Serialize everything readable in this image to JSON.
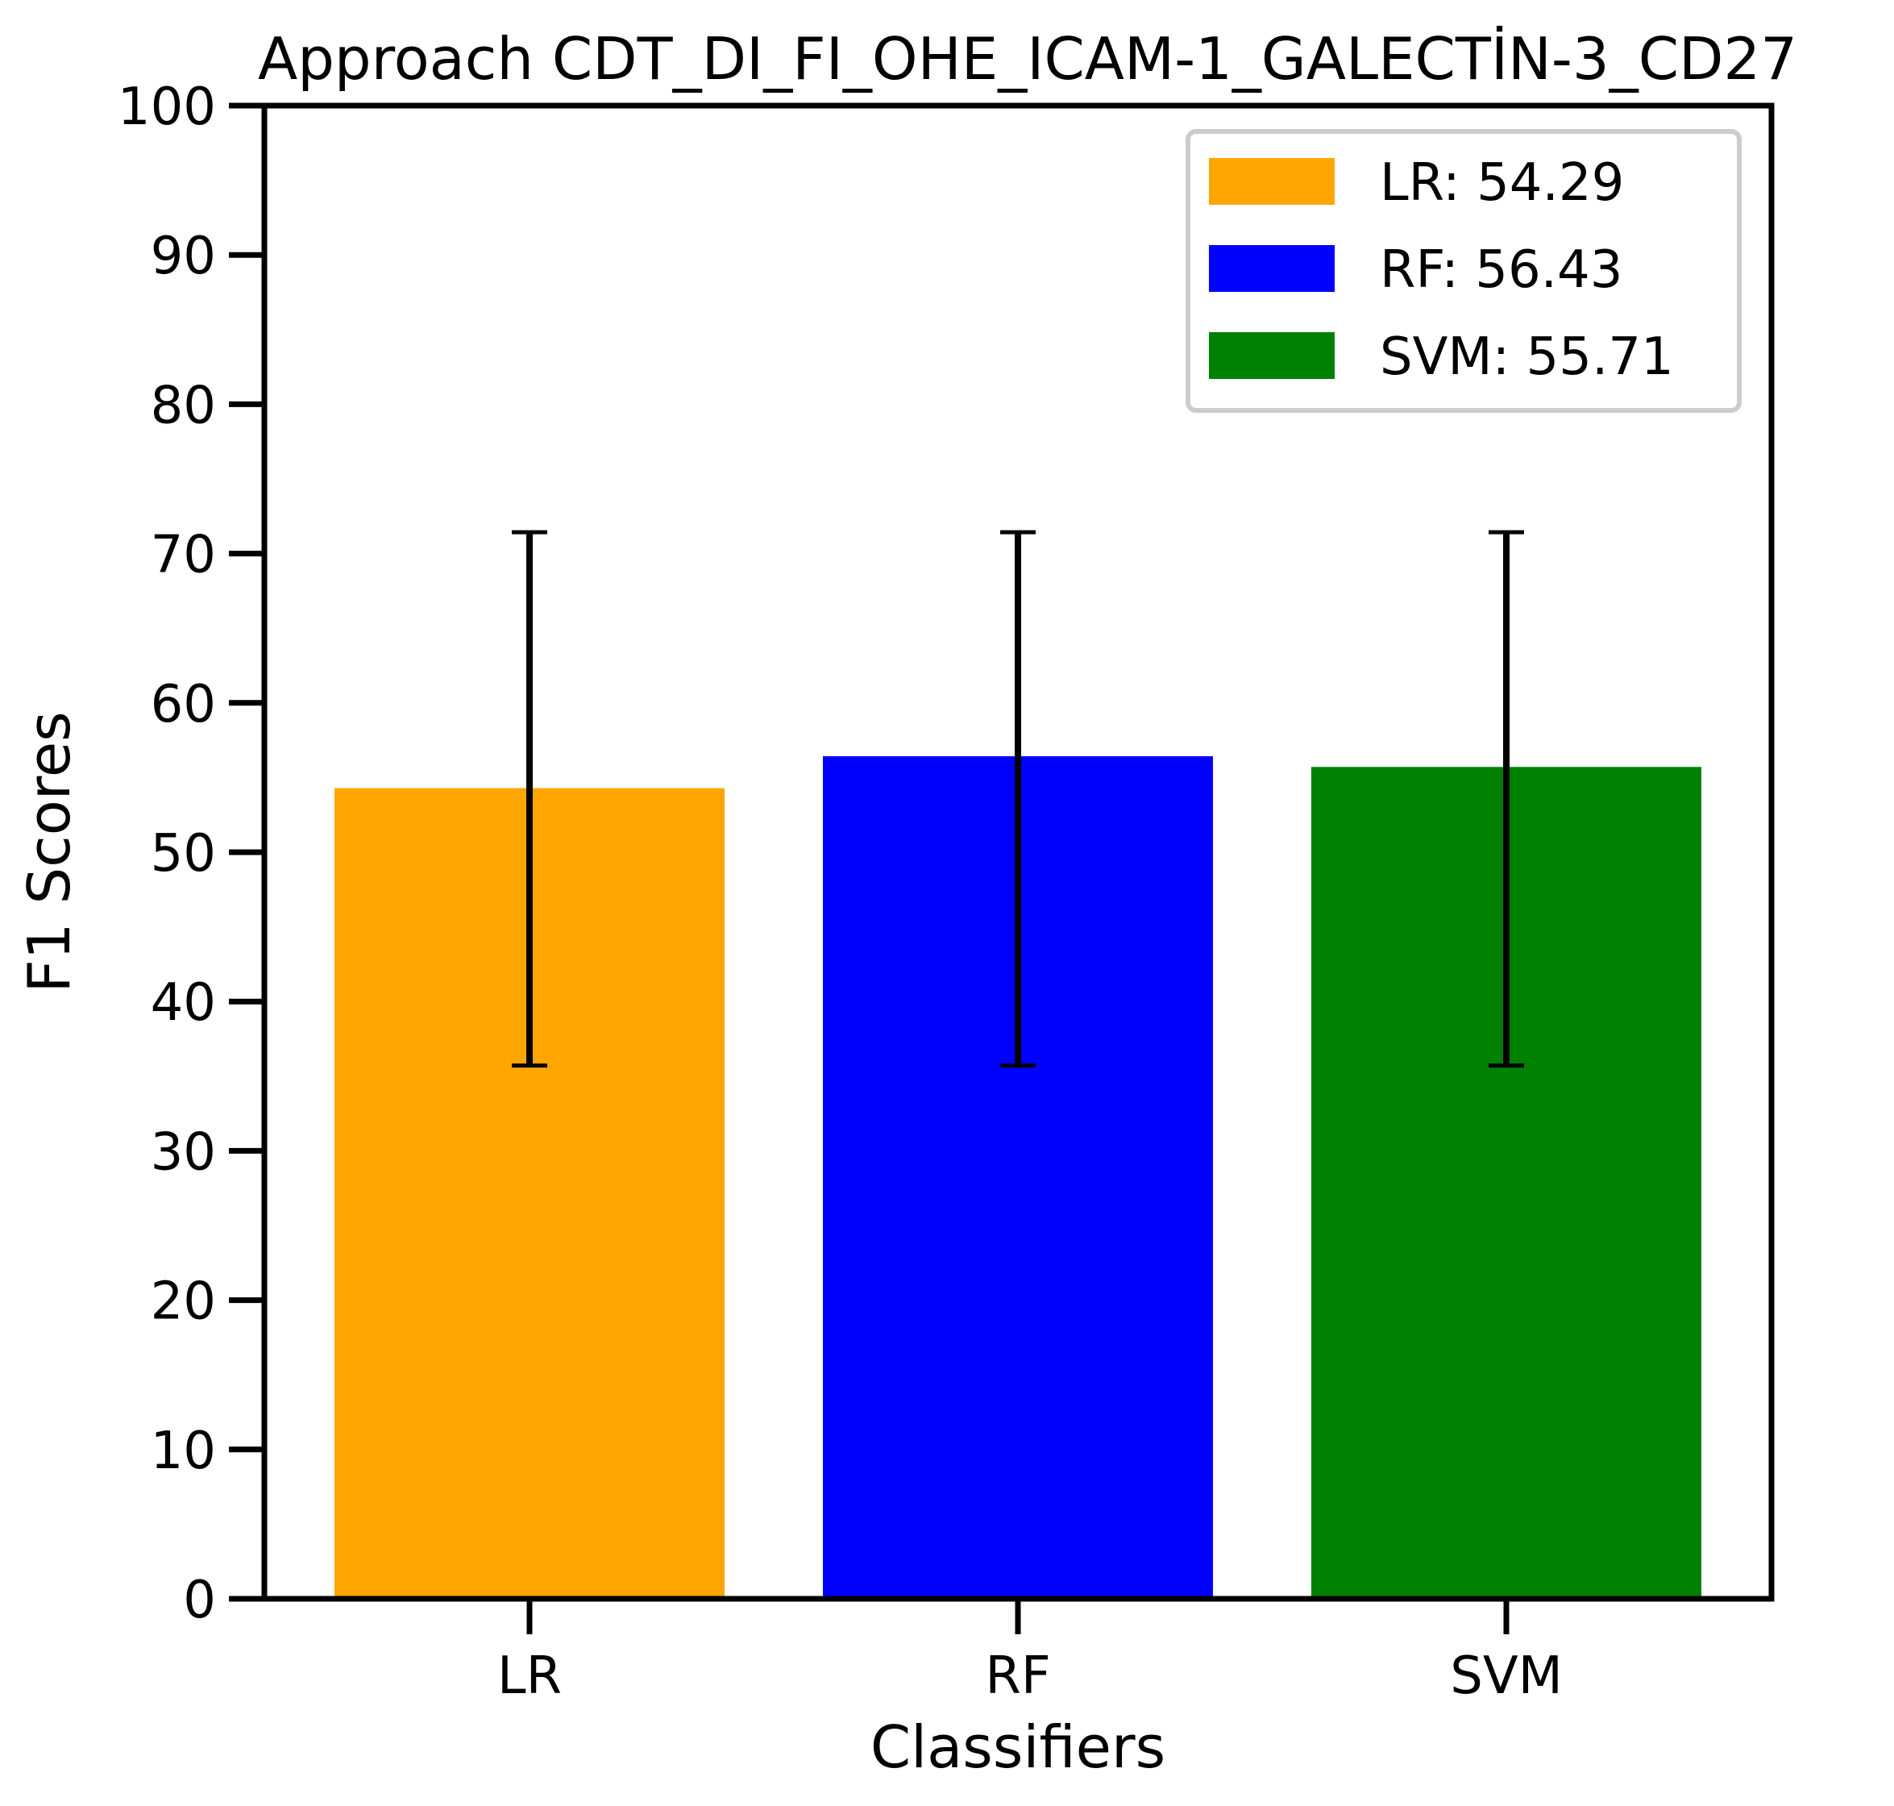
{
  "chart_data": {
    "type": "bar",
    "title": "Approach CDT_DI_FI_OHE_ICAM-1_GALECTİN-3_CD27",
    "xlabel": "Classifiers",
    "ylabel": "F1 Scores",
    "categories": [
      "LR",
      "RF",
      "SVM"
    ],
    "values": [
      54.29,
      56.43,
      55.71
    ],
    "error_low": [
      35.71,
      35.71,
      35.71
    ],
    "error_high": [
      71.43,
      71.43,
      71.43
    ],
    "colors": [
      "#ffa500",
      "#0000ff",
      "#008000"
    ],
    "ylim": [
      0,
      100
    ],
    "yticks": [
      0,
      10,
      20,
      30,
      40,
      50,
      60,
      70,
      80,
      90,
      100
    ],
    "grid": false,
    "legend": {
      "position": "top-right",
      "entries": [
        "LR: 54.29",
        "RF: 56.43",
        "SVM: 55.71"
      ]
    }
  }
}
